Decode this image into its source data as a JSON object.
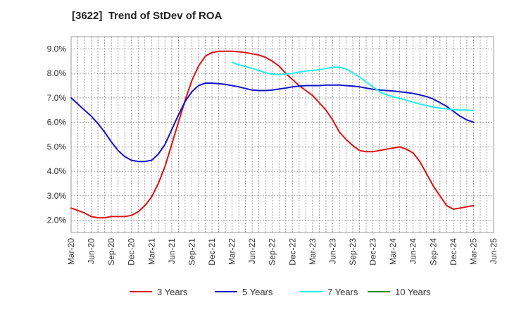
{
  "chart_data": {
    "type": "line",
    "title": "[3622]  Trend of StDev of ROA",
    "xlabel": "",
    "ylabel": "",
    "ylim": [
      1.5,
      9.5
    ],
    "y_ticks": [
      "2.0%",
      "3.0%",
      "4.0%",
      "5.0%",
      "6.0%",
      "7.0%",
      "8.0%",
      "9.0%"
    ],
    "y_tick_values": [
      2,
      3,
      4,
      5,
      6,
      7,
      8,
      9
    ],
    "x_ticks": [
      "Mar-20",
      "Jun-20",
      "Sep-20",
      "Dec-20",
      "Mar-21",
      "Jun-21",
      "Sep-21",
      "Dec-21",
      "Mar-22",
      "Jun-22",
      "Sep-22",
      "Dec-22",
      "Mar-23",
      "Jun-23",
      "Sep-23",
      "Dec-23",
      "Mar-24",
      "Jun-24",
      "Sep-24",
      "Dec-24",
      "Mar-25",
      "Jun-25"
    ],
    "grid": true,
    "legend_position": "bottom",
    "series": [
      {
        "name": "3 Years",
        "color": "#dd1111",
        "x": [
          "2020-03",
          "2020-04",
          "2020-05",
          "2020-06",
          "2020-07",
          "2020-08",
          "2020-09",
          "2020-10",
          "2020-11",
          "2020-12",
          "2021-01",
          "2021-02",
          "2021-03",
          "2021-04",
          "2021-05",
          "2021-06",
          "2021-07",
          "2021-08",
          "2021-09",
          "2021-10",
          "2021-11",
          "2021-12",
          "2022-01",
          "2022-02",
          "2022-03",
          "2022-04",
          "2022-05",
          "2022-06",
          "2022-07",
          "2022-08",
          "2022-09",
          "2022-10",
          "2022-11",
          "2022-12",
          "2023-01",
          "2023-02",
          "2023-03",
          "2023-04",
          "2023-05",
          "2023-06",
          "2023-07",
          "2023-08",
          "2023-09",
          "2023-10",
          "2023-11",
          "2023-12",
          "2024-01",
          "2024-02",
          "2024-03",
          "2024-04",
          "2024-05",
          "2024-06",
          "2024-07",
          "2024-08",
          "2024-09",
          "2024-10",
          "2024-11",
          "2024-12",
          "2025-01",
          "2025-02",
          "2025-03"
        ],
        "values": [
          2.5,
          2.4,
          2.3,
          2.15,
          2.1,
          2.1,
          2.15,
          2.15,
          2.15,
          2.2,
          2.35,
          2.6,
          2.95,
          3.5,
          4.2,
          5.1,
          6.0,
          6.9,
          7.7,
          8.3,
          8.7,
          8.85,
          8.9,
          8.9,
          8.9,
          8.88,
          8.85,
          8.8,
          8.75,
          8.65,
          8.5,
          8.3,
          8.0,
          7.75,
          7.5,
          7.3,
          7.1,
          6.8,
          6.5,
          6.1,
          5.6,
          5.3,
          5.05,
          4.85,
          4.8,
          4.8,
          4.85,
          4.9,
          4.95,
          5.0,
          4.9,
          4.75,
          4.4,
          3.9,
          3.4,
          3.0,
          2.6,
          2.45,
          2.5,
          2.55,
          2.6
        ]
      },
      {
        "name": "5 Years",
        "color": "#1111cc",
        "x": [
          "2020-03",
          "2020-04",
          "2020-05",
          "2020-06",
          "2020-07",
          "2020-08",
          "2020-09",
          "2020-10",
          "2020-11",
          "2020-12",
          "2021-01",
          "2021-02",
          "2021-03",
          "2021-04",
          "2021-05",
          "2021-06",
          "2021-07",
          "2021-08",
          "2021-09",
          "2021-10",
          "2021-11",
          "2021-12",
          "2022-01",
          "2022-02",
          "2022-03",
          "2022-04",
          "2022-05",
          "2022-06",
          "2022-07",
          "2022-08",
          "2022-09",
          "2022-10",
          "2022-11",
          "2022-12",
          "2023-01",
          "2023-02",
          "2023-03",
          "2023-04",
          "2023-05",
          "2023-06",
          "2023-07",
          "2023-08",
          "2023-09",
          "2023-10",
          "2023-11",
          "2023-12",
          "2024-01",
          "2024-02",
          "2024-03",
          "2024-04",
          "2024-05",
          "2024-06",
          "2024-07",
          "2024-08",
          "2024-09",
          "2024-10",
          "2024-11",
          "2024-12",
          "2025-01",
          "2025-02",
          "2025-03"
        ],
        "values": [
          7.0,
          6.75,
          6.5,
          6.25,
          5.95,
          5.6,
          5.2,
          4.85,
          4.6,
          4.45,
          4.4,
          4.4,
          4.45,
          4.7,
          5.1,
          5.7,
          6.3,
          6.85,
          7.25,
          7.5,
          7.6,
          7.6,
          7.58,
          7.55,
          7.5,
          7.45,
          7.38,
          7.32,
          7.3,
          7.3,
          7.32,
          7.36,
          7.4,
          7.45,
          7.48,
          7.5,
          7.5,
          7.5,
          7.52,
          7.52,
          7.52,
          7.5,
          7.48,
          7.45,
          7.4,
          7.35,
          7.32,
          7.3,
          7.28,
          7.25,
          7.22,
          7.18,
          7.12,
          7.05,
          6.95,
          6.8,
          6.65,
          6.45,
          6.25,
          6.1,
          6.0
        ]
      },
      {
        "name": "7 Years",
        "color": "#22eeee",
        "x": [
          "2022-03",
          "2022-04",
          "2022-05",
          "2022-06",
          "2022-07",
          "2022-08",
          "2022-09",
          "2022-10",
          "2022-11",
          "2022-12",
          "2023-01",
          "2023-02",
          "2023-03",
          "2023-04",
          "2023-05",
          "2023-06",
          "2023-07",
          "2023-08",
          "2023-09",
          "2023-10",
          "2023-11",
          "2023-12",
          "2024-01",
          "2024-02",
          "2024-03",
          "2024-04",
          "2024-05",
          "2024-06",
          "2024-07",
          "2024-08",
          "2024-09",
          "2024-10",
          "2024-11",
          "2024-12",
          "2025-01",
          "2025-02",
          "2025-03"
        ],
        "values": [
          8.45,
          8.35,
          8.28,
          8.2,
          8.12,
          8.02,
          7.97,
          7.95,
          7.97,
          8.0,
          8.05,
          8.1,
          8.12,
          8.15,
          8.2,
          8.25,
          8.25,
          8.18,
          8.02,
          7.85,
          7.65,
          7.45,
          7.25,
          7.12,
          7.05,
          6.98,
          6.9,
          6.82,
          6.75,
          6.68,
          6.62,
          6.58,
          6.55,
          6.52,
          6.5,
          6.5,
          6.48
        ]
      },
      {
        "name": "10 Years",
        "color": "#228822",
        "x": [],
        "values": []
      }
    ]
  }
}
